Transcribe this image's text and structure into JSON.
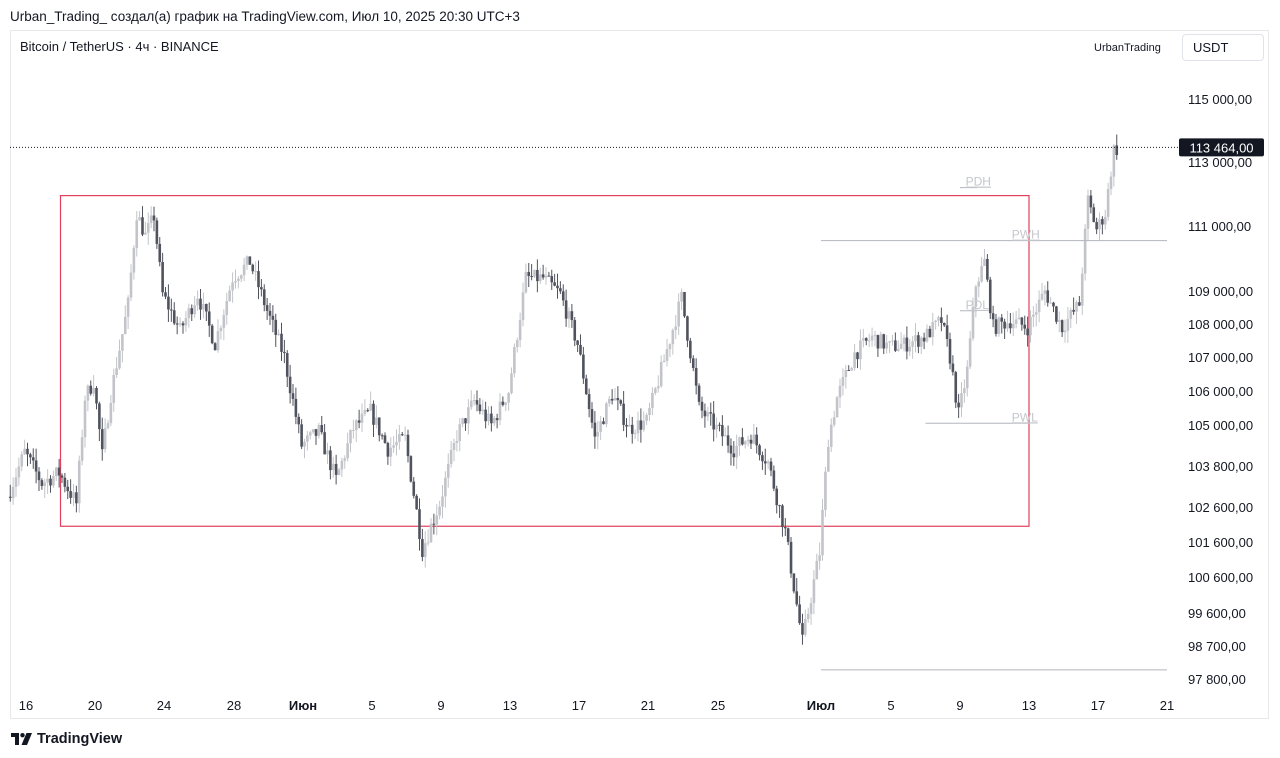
{
  "header": {
    "attribution": "Urban_Trading_ создал(а) график на TradingView.com, Июл 10, 2025 20:30 UTC+3"
  },
  "symbol": {
    "title": "Bitcoin / TetherUS · 4ч · BINANCE"
  },
  "author": {
    "name": "UrbanTrading"
  },
  "currency": {
    "label": "USDT"
  },
  "footer": {
    "brand": "TradingView"
  },
  "colors": {
    "candle_up": "#c2c4c9",
    "candle_down": "#50535e",
    "box": "#e0405c",
    "level_line": "#b2b5be",
    "level_text": "#c4c6cc"
  },
  "chart_data": {
    "type": "candlestick",
    "title": "",
    "xlabel": "",
    "ylabel": "",
    "y_axis_labels": [
      115000,
      113000,
      111000,
      109000,
      108000,
      107000,
      106000,
      105000,
      103800,
      102600,
      101600,
      100600,
      99600,
      98700,
      97800
    ],
    "y_axis_label_texts": [
      "115 000,00",
      "113 000,00",
      "111 000,00",
      "109 000,00",
      "108 000,00",
      "107 000,00",
      "106 000,00",
      "105 000,00",
      "103 800,00",
      "102 600,00",
      "101 600,00",
      "100 600,00",
      "99 600,00",
      "98 700,00",
      "97 800,00"
    ],
    "x_tick_labels": [
      {
        "label": "16",
        "bold": false
      },
      {
        "label": "20",
        "bold": false
      },
      {
        "label": "24",
        "bold": false
      },
      {
        "label": "28",
        "bold": false
      },
      {
        "label": "Июн",
        "bold": true
      },
      {
        "label": "5",
        "bold": false
      },
      {
        "label": "9",
        "bold": false
      },
      {
        "label": "13",
        "bold": false
      },
      {
        "label": "17",
        "bold": false
      },
      {
        "label": "21",
        "bold": false
      },
      {
        "label": "25",
        "bold": false
      },
      {
        "label": "Июл",
        "bold": true
      },
      {
        "label": "5",
        "bold": false
      },
      {
        "label": "9",
        "bold": false
      },
      {
        "label": "13",
        "bold": false
      },
      {
        "label": "17",
        "bold": false
      },
      {
        "label": "21",
        "bold": false
      }
    ],
    "x_tick_dates": [
      "2025-05-16",
      "2025-05-20",
      "2025-05-24",
      "2025-05-28",
      "2025-06-01",
      "2025-06-05",
      "2025-06-09",
      "2025-06-13",
      "2025-06-17",
      "2025-06-21",
      "2025-06-25",
      "2025-07-01",
      "2025-07-05",
      "2025-07-09",
      "2025-07-13",
      "2025-07-17",
      "2025-07-21"
    ],
    "current_price": {
      "value": 113464,
      "label": "113 464,00"
    },
    "range_box": {
      "x_start": "2025-05-18",
      "x_end": "2025-07-13",
      "y_top": 111950,
      "y_bottom": 102050
    },
    "levels": [
      {
        "name": "PDH",
        "value": 112200,
        "x_start": "2025-07-09",
        "x_end": "2025-07-10"
      },
      {
        "name": "PWH",
        "value": 110550,
        "x_start": "2025-07-01",
        "x_end": "2025-07-21"
      },
      {
        "name": "PDL",
        "value": 108400,
        "x_start": "2025-07-09",
        "x_end": "2025-07-10"
      },
      {
        "name": "PWL",
        "value": 105050,
        "x_start": "2025-07-07",
        "x_end": "2025-07-13"
      },
      {
        "name": "",
        "value": 98050,
        "x_start": "2025-07-01",
        "x_end": "2025-07-21"
      }
    ],
    "price_path": [
      [
        "2025-05-15",
        102900
      ],
      [
        "2025-05-16",
        104200
      ],
      [
        "2025-05-17",
        103300
      ],
      [
        "2025-05-18",
        103600
      ],
      [
        "2025-05-19",
        102700
      ],
      [
        "2025-05-19T12",
        105800
      ],
      [
        "2025-05-20",
        106300
      ],
      [
        "2025-05-20T12",
        104100
      ],
      [
        "2025-05-21",
        105900
      ],
      [
        "2025-05-22",
        108600
      ],
      [
        "2025-05-22T12",
        111400
      ],
      [
        "2025-05-23",
        110700
      ],
      [
        "2025-05-23T12",
        111300
      ],
      [
        "2025-05-24",
        108900
      ],
      [
        "2025-05-25",
        107800
      ],
      [
        "2025-05-26",
        108900
      ],
      [
        "2025-05-27",
        107400
      ],
      [
        "2025-05-28",
        109400
      ],
      [
        "2025-05-29",
        109900
      ],
      [
        "2025-05-30",
        108400
      ],
      [
        "2025-05-31",
        107000
      ],
      [
        "2025-06-01",
        104400
      ],
      [
        "2025-06-02",
        104800
      ],
      [
        "2025-06-03",
        103400
      ],
      [
        "2025-06-04",
        104900
      ],
      [
        "2025-06-05",
        105400
      ],
      [
        "2025-06-06",
        104300
      ],
      [
        "2025-06-07",
        104600
      ],
      [
        "2025-06-08",
        101400
      ],
      [
        "2025-06-09",
        102700
      ],
      [
        "2025-06-10",
        104700
      ],
      [
        "2025-06-11",
        105700
      ],
      [
        "2025-06-12",
        105000
      ],
      [
        "2025-06-13",
        106000
      ],
      [
        "2025-06-14",
        109400
      ],
      [
        "2025-06-15",
        109400
      ],
      [
        "2025-06-16",
        108900
      ],
      [
        "2025-06-17",
        107400
      ],
      [
        "2025-06-18",
        104600
      ],
      [
        "2025-06-19",
        105900
      ],
      [
        "2025-06-20",
        104900
      ],
      [
        "2025-06-21",
        105100
      ],
      [
        "2025-06-22",
        106900
      ],
      [
        "2025-06-23",
        108800
      ],
      [
        "2025-06-24",
        105500
      ],
      [
        "2025-06-25",
        104900
      ],
      [
        "2025-06-26",
        104300
      ],
      [
        "2025-06-27",
        104700
      ],
      [
        "2025-06-28",
        103900
      ],
      [
        "2025-06-29",
        101900
      ],
      [
        "2025-06-30",
        98800
      ],
      [
        "2025-07-01",
        101300
      ],
      [
        "2025-07-01T12",
        104600
      ],
      [
        "2025-07-02",
        105800
      ],
      [
        "2025-07-03",
        107100
      ],
      [
        "2025-07-04",
        107600
      ],
      [
        "2025-07-05",
        107300
      ],
      [
        "2025-07-06",
        107400
      ],
      [
        "2025-07-07",
        107600
      ],
      [
        "2025-07-08",
        108100
      ],
      [
        "2025-07-08T12",
        107000
      ],
      [
        "2025-07-09",
        105300
      ],
      [
        "2025-07-09T12",
        106600
      ],
      [
        "2025-07-10",
        109200
      ],
      [
        "2025-07-10T12",
        109900
      ],
      [
        "2025-07-11",
        107900
      ],
      [
        "2025-07-12",
        108100
      ],
      [
        "2025-07-13",
        107900
      ],
      [
        "2025-07-14",
        109000
      ],
      [
        "2025-07-15",
        107900
      ],
      [
        "2025-07-16",
        108600
      ],
      [
        "2025-07-16T12",
        111800
      ],
      [
        "2025-07-17",
        110900
      ],
      [
        "2025-07-17T12",
        111400
      ],
      [
        "2025-07-18",
        113400
      ]
    ]
  }
}
